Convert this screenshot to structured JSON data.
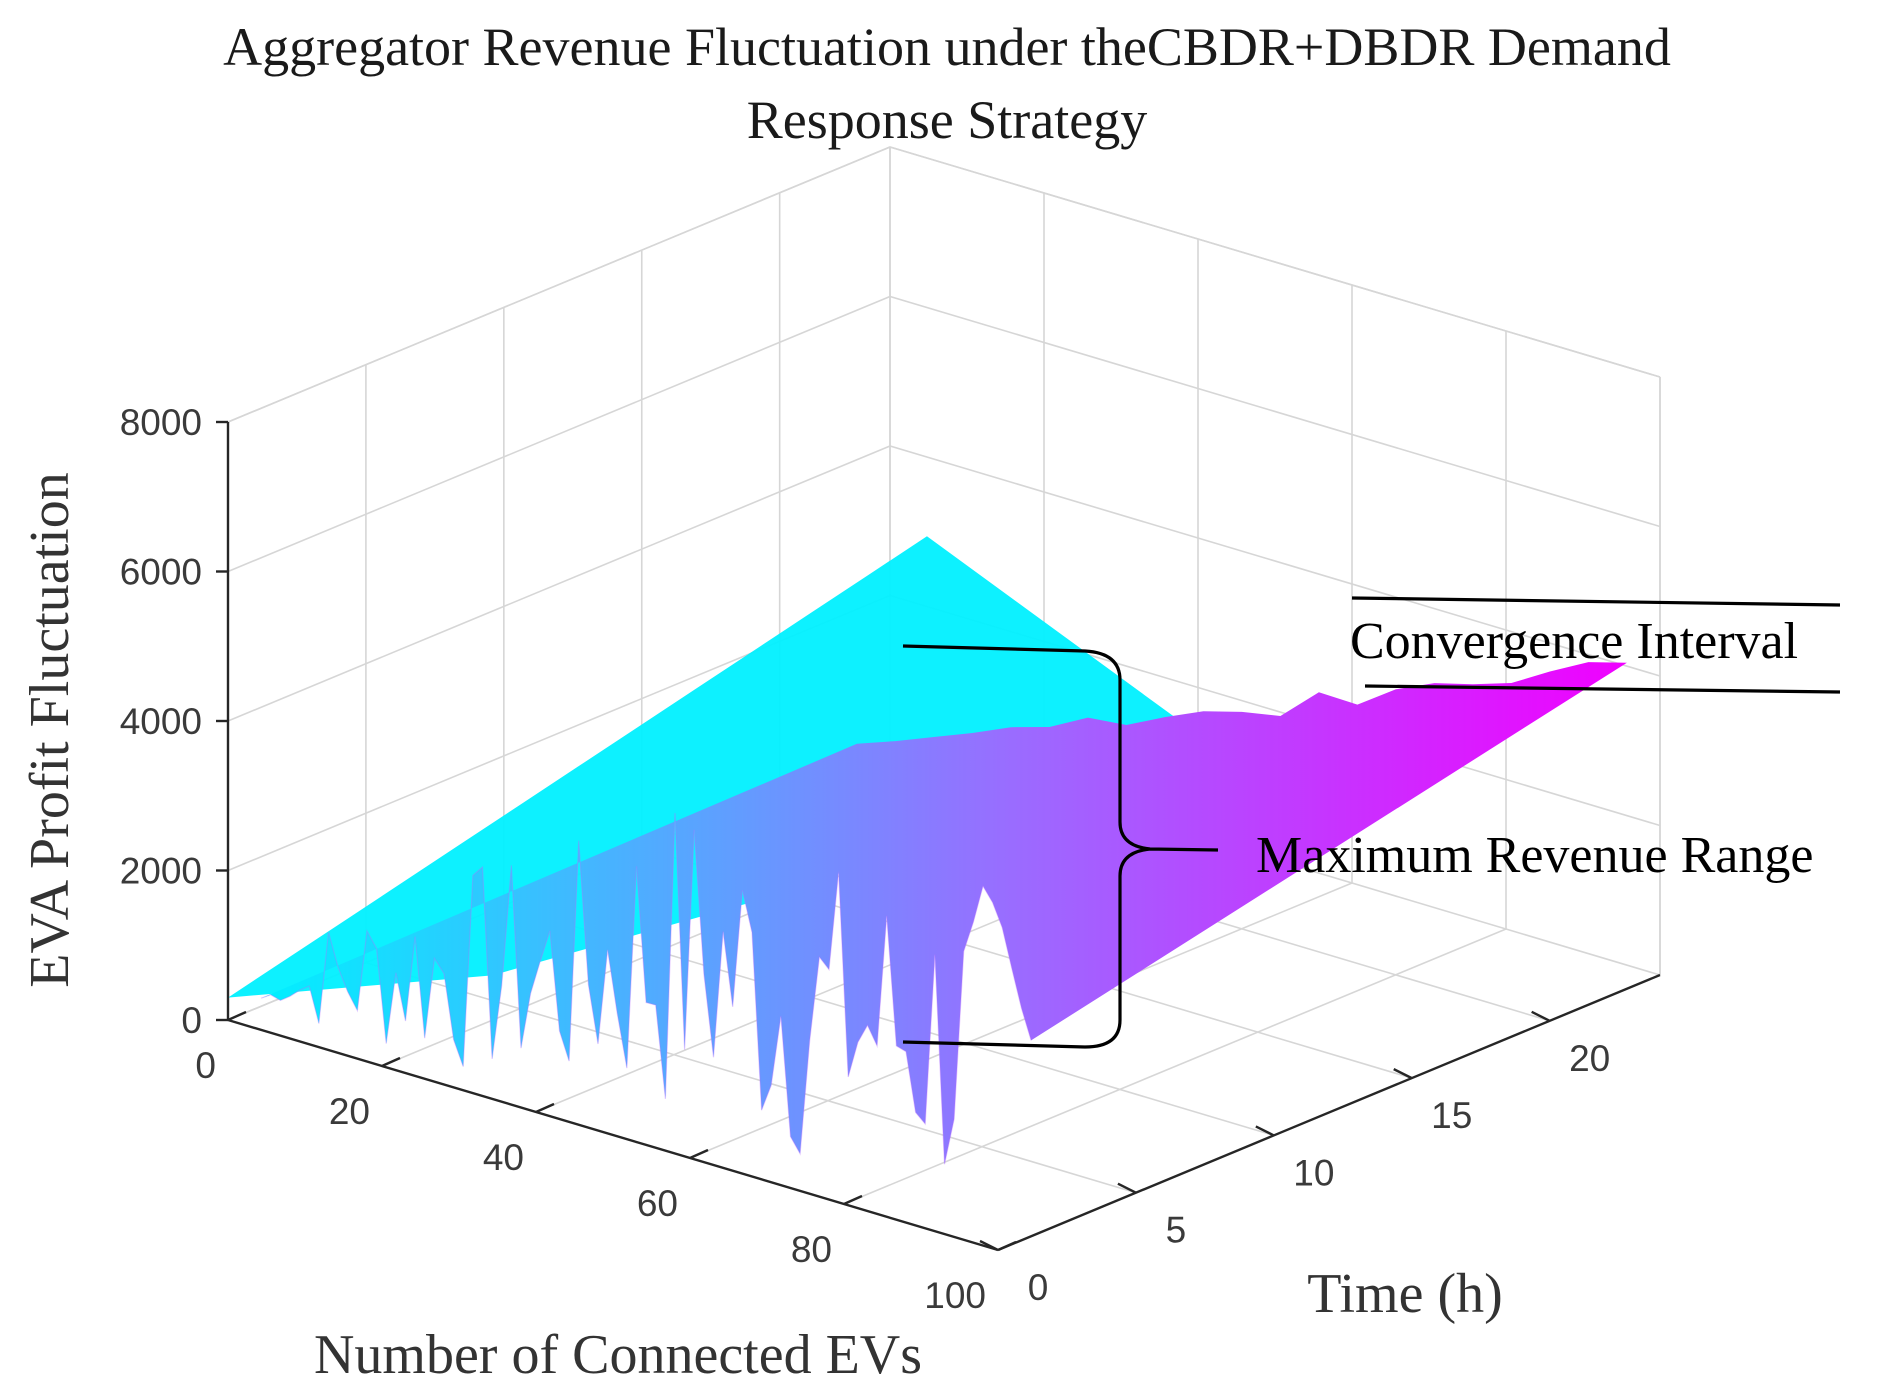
{
  "chart_data": {
    "type": "surface3d",
    "title_line1": "Aggregator Revenue Fluctuation under theCBDR+DBDR Demand",
    "title_line2": "Response Strategy",
    "xlabel": "Number of Connected EVs",
    "ylabel": "Time (h)",
    "zlabel": "EVA Profit Fluctuation",
    "xlim": [
      0,
      100
    ],
    "ylim": [
      0,
      24
    ],
    "zlim": [
      0,
      8000
    ],
    "x_ticks": [
      "0",
      "20",
      "40",
      "60",
      "80",
      "100"
    ],
    "y_ticks": [
      "0",
      "5",
      "10",
      "15",
      "20"
    ],
    "z_ticks": [
      "0",
      "2000",
      "4000",
      "6000",
      "8000"
    ],
    "colormap": [
      "#00f0ff",
      "#f000ff"
    ],
    "surface_profile": {
      "ev_count": [
        0,
        10,
        20,
        30,
        40,
        50,
        60,
        70,
        80,
        90,
        100
      ],
      "back_ridge_profit": [
        200,
        600,
        1000,
        1400,
        1800,
        2200,
        2600,
        3000,
        3500,
        4000,
        4600
      ],
      "front_edge_min_profit": [
        0,
        0,
        0,
        0,
        0,
        0,
        0,
        0,
        0,
        0,
        0
      ],
      "front_edge_max_profit": [
        200,
        1200,
        2000,
        2500,
        3000,
        4100,
        4300,
        3800,
        4000,
        4200,
        4300
      ]
    },
    "annotations": [
      {
        "text": "Convergence Interval",
        "kind": "horizontal-band"
      },
      {
        "text": "Maximum Revenue Range",
        "kind": "curly-brace"
      }
    ]
  }
}
